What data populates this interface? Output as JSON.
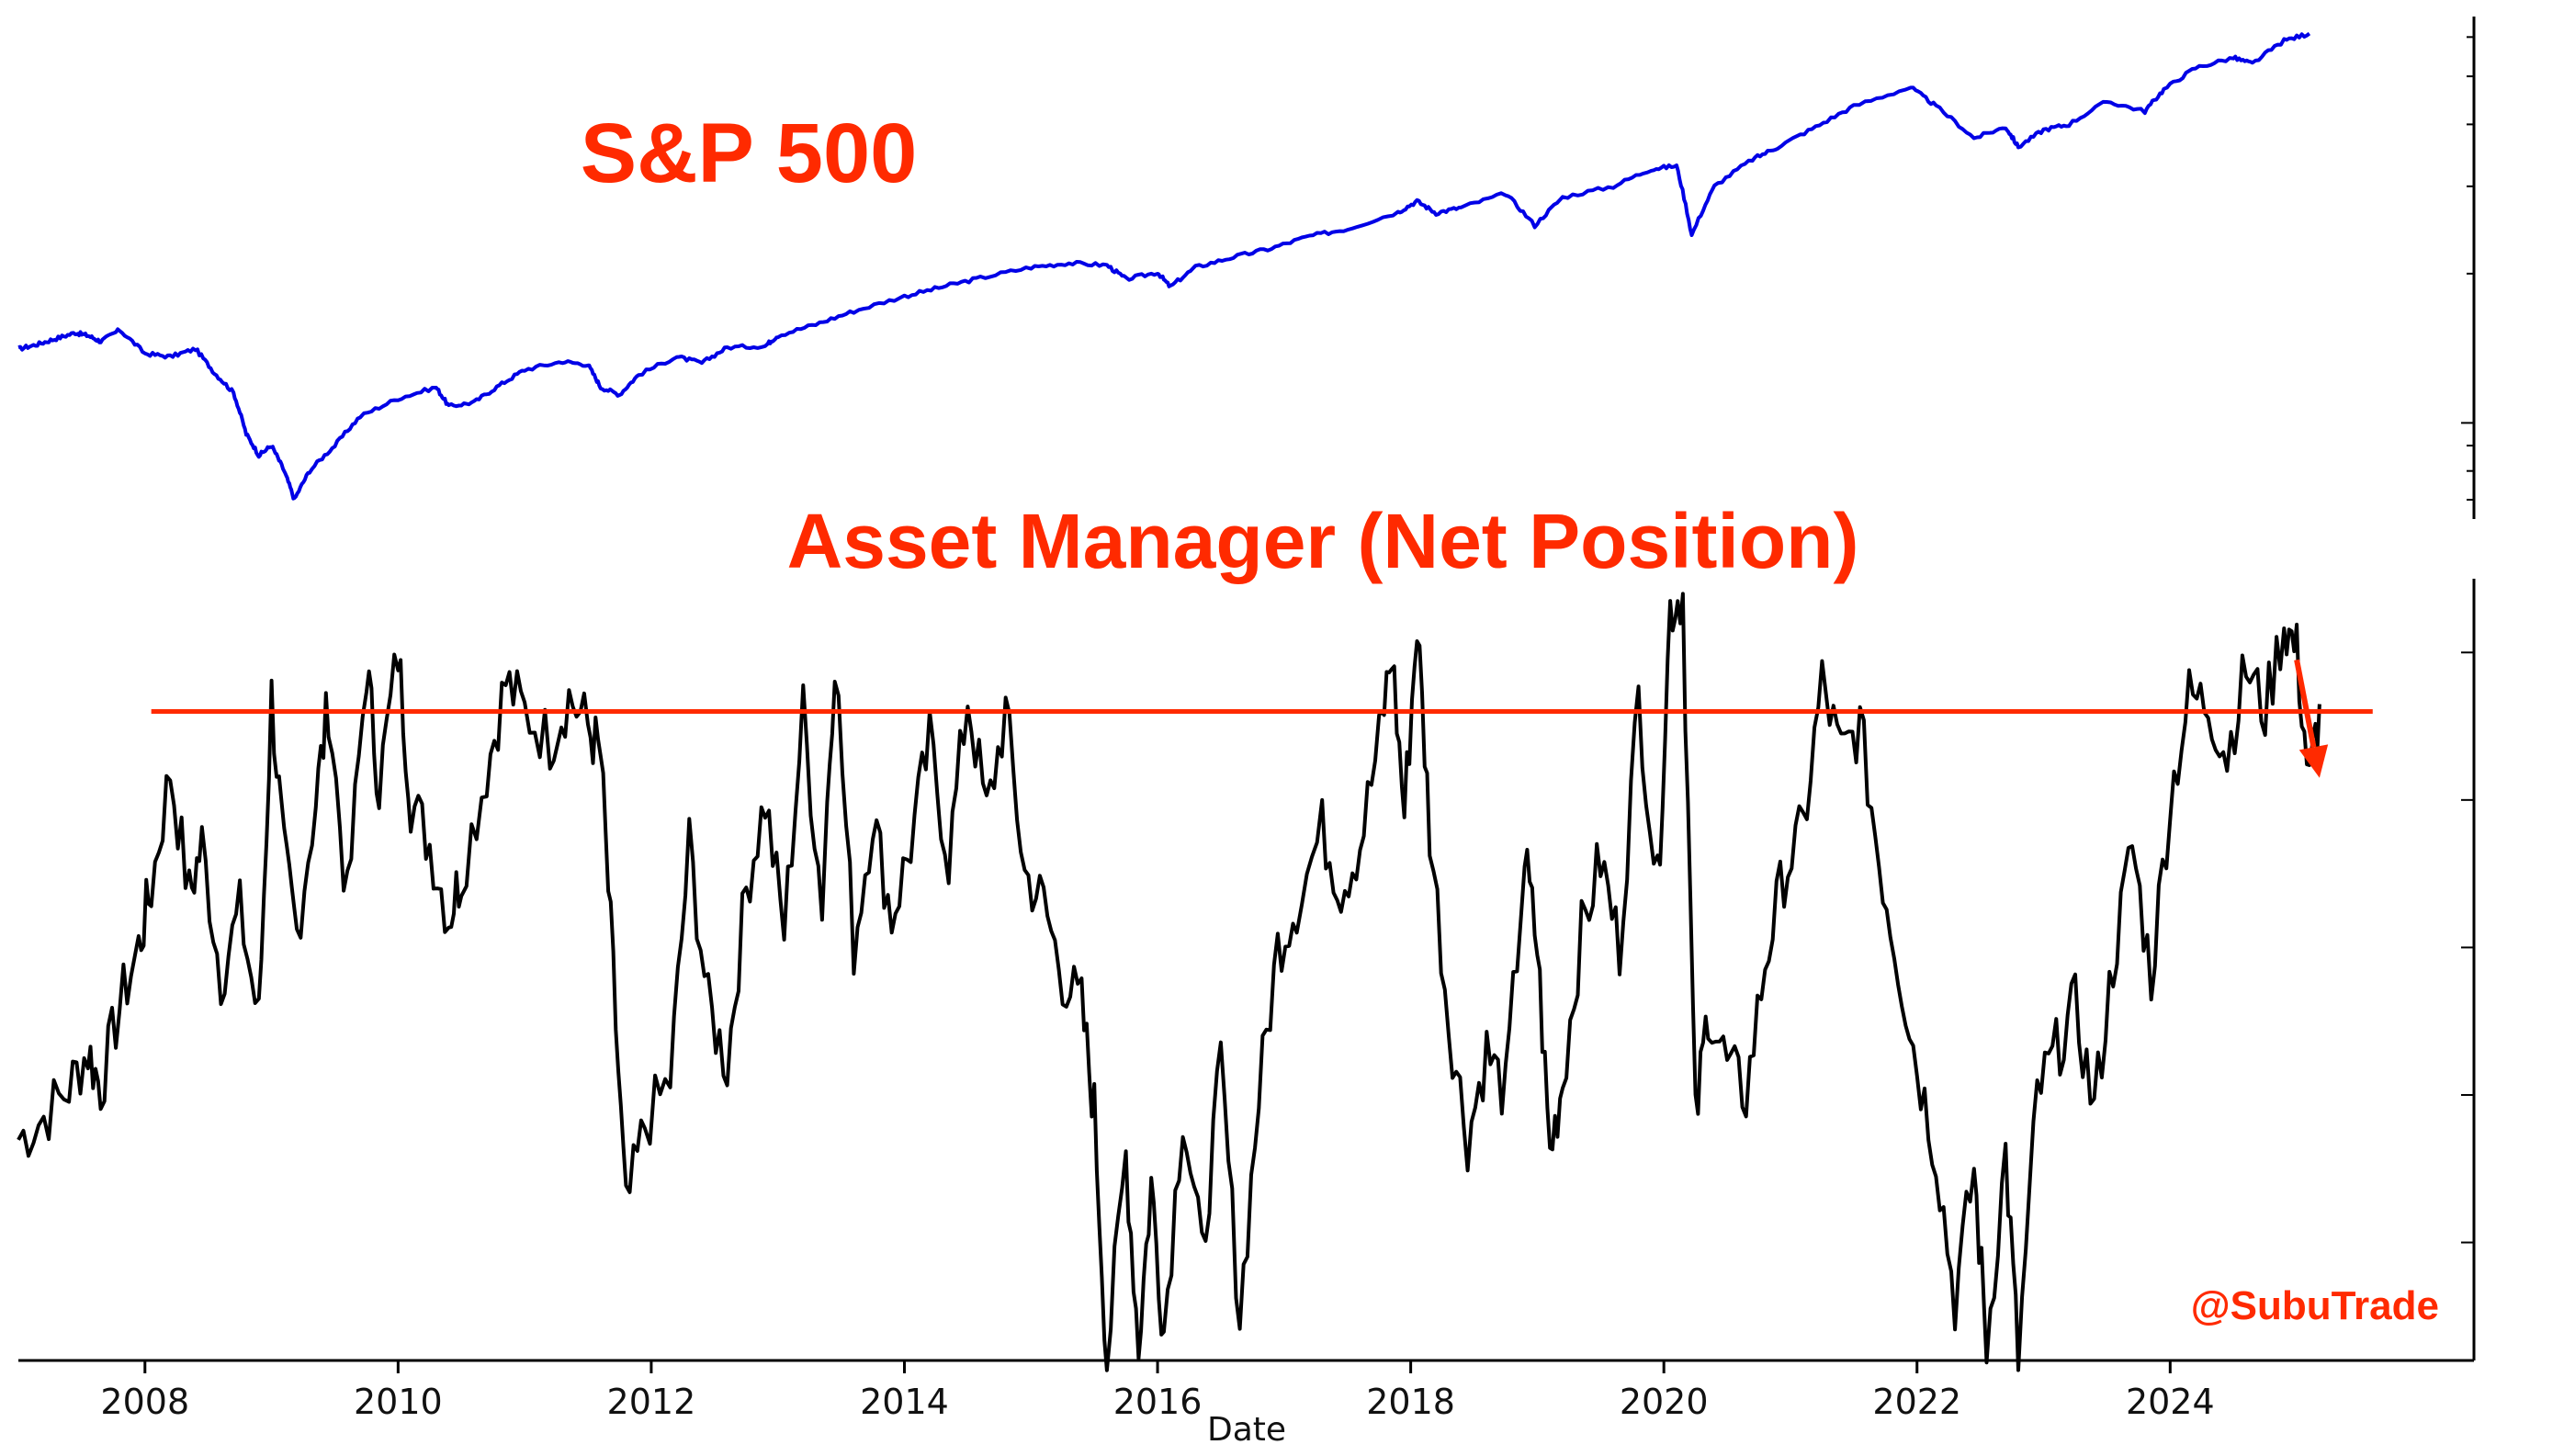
{
  "chart_data": [
    {
      "type": "line",
      "title": "S&P 500",
      "xlabel": "",
      "ylabel": "",
      "xlim": [
        2007.0,
        2026.4
      ],
      "ylim": [
        640,
        6600
      ],
      "log_scale": true,
      "grid": false,
      "y_tick_values": [
        700,
        800,
        900,
        1000,
        2000,
        3000,
        4000,
        5000,
        6000
      ],
      "series": [
        {
          "name": "",
          "color": "#0000e6",
          "x": [
            2007.0,
            2007.15,
            2007.3,
            2007.45,
            2007.55,
            2007.65,
            2007.8,
            2008.0,
            2008.2,
            2008.4,
            2008.55,
            2008.7,
            2008.8,
            2008.9,
            2009.0,
            2009.1,
            2009.18,
            2009.3,
            2009.5,
            2009.7,
            2010.0,
            2010.3,
            2010.4,
            2010.6,
            2010.8,
            2011.0,
            2011.3,
            2011.5,
            2011.6,
            2011.75,
            2011.9,
            2012.2,
            2012.4,
            2012.6,
            2012.9,
            2013.0,
            2013.3,
            2013.6,
            2014.0,
            2014.3,
            2014.6,
            2015.0,
            2015.3,
            2015.6,
            2015.75,
            2016.0,
            2016.1,
            2016.3,
            2016.6,
            2016.9,
            2017.2,
            2017.5,
            2017.9,
            2018.05,
            2018.2,
            2018.4,
            2018.75,
            2018.98,
            2019.2,
            2019.6,
            2019.9,
            2020.1,
            2020.22,
            2020.4,
            2020.7,
            2020.9,
            2021.2,
            2021.5,
            2021.95,
            2022.15,
            2022.45,
            2022.7,
            2022.8,
            2023.0,
            2023.2,
            2023.5,
            2023.8,
            2023.95,
            2024.2,
            2024.5,
            2024.65,
            2024.9,
            2025.1
          ],
          "values": [
            1410,
            1440,
            1480,
            1520,
            1500,
            1460,
            1540,
            1380,
            1360,
            1410,
            1260,
            1150,
            950,
            860,
            900,
            800,
            700,
            800,
            900,
            1030,
            1120,
            1180,
            1080,
            1100,
            1190,
            1280,
            1330,
            1310,
            1180,
            1140,
            1250,
            1360,
            1320,
            1420,
            1430,
            1500,
            1580,
            1680,
            1800,
            1880,
            1960,
            2060,
            2100,
            2080,
            1950,
            2010,
            1880,
            2060,
            2160,
            2250,
            2380,
            2460,
            2660,
            2800,
            2650,
            2720,
            2900,
            2500,
            2850,
            3000,
            3250,
            3300,
            2390,
            3000,
            3400,
            3600,
            3950,
            4350,
            4750,
            4350,
            3750,
            3950,
            3600,
            3900,
            4000,
            4450,
            4250,
            4700,
            5200,
            5450,
            5300,
            5900,
            6100
          ]
        }
      ]
    },
    {
      "type": "line",
      "title": "Asset Manager (Net Position)",
      "xlabel": "Date",
      "ylabel": "",
      "xlim": [
        2007.0,
        2026.4
      ],
      "ylim": [
        -2.2,
        3.1
      ],
      "grid": false,
      "x_tick_labels": [
        "2008",
        "2010",
        "2012",
        "2014",
        "2016",
        "2018",
        "2020",
        "2022",
        "2024"
      ],
      "x_tick_values": [
        2008,
        2010,
        2012,
        2014,
        2016,
        2018,
        2020,
        2022,
        2024
      ],
      "y_tick_values": [
        -1.4,
        -0.4,
        0.6,
        1.6,
        2.6
      ],
      "threshold_line": {
        "value": 2.2,
        "color": "#ff2a00",
        "x_start": 2008.05,
        "x_end": 2025.6
      },
      "arrow": {
        "color": "#ff2a00",
        "from": [
          2025.0,
          2.55
        ],
        "to": [
          2025.18,
          1.75
        ]
      },
      "series": [
        {
          "name": "",
          "color": "#000000",
          "x": [
            2007.0,
            2007.2,
            2007.4,
            2007.55,
            2007.65,
            2007.8,
            2007.95,
            2008.05,
            2008.2,
            2008.35,
            2008.45,
            2008.6,
            2008.75,
            2008.9,
            2009.0,
            2009.1,
            2009.2,
            2009.35,
            2009.45,
            2009.6,
            2009.75,
            2009.85,
            2010.0,
            2010.1,
            2010.25,
            2010.4,
            2010.5,
            2010.7,
            2010.85,
            2011.0,
            2011.2,
            2011.35,
            2011.5,
            2011.6,
            2011.7,
            2011.8,
            2011.95,
            2012.15,
            2012.3,
            2012.45,
            2012.6,
            2012.75,
            2012.9,
            2013.05,
            2013.2,
            2013.35,
            2013.45,
            2013.6,
            2013.75,
            2013.9,
            2014.05,
            2014.2,
            2014.35,
            2014.5,
            2014.65,
            2014.8,
            2014.95,
            2015.1,
            2015.25,
            2015.4,
            2015.5,
            2015.6,
            2015.75,
            2015.85,
            2015.95,
            2016.05,
            2016.2,
            2016.35,
            2016.5,
            2016.65,
            2016.8,
            2016.95,
            2017.1,
            2017.3,
            2017.45,
            2017.6,
            2017.75,
            2017.85,
            2017.95,
            2018.05,
            2018.15,
            2018.3,
            2018.45,
            2018.6,
            2018.75,
            2018.9,
            2019.0,
            2019.1,
            2019.2,
            2019.35,
            2019.5,
            2019.65,
            2019.8,
            2019.95,
            2020.05,
            2020.15,
            2020.25,
            2020.35,
            2020.5,
            2020.65,
            2020.8,
            2020.95,
            2021.1,
            2021.25,
            2021.4,
            2021.55,
            2021.7,
            2021.85,
            2022.0,
            2022.15,
            2022.3,
            2022.45,
            2022.55,
            2022.7,
            2022.8,
            2022.95,
            2023.1,
            2023.25,
            2023.4,
            2023.55,
            2023.7,
            2023.85,
            2024.0,
            2024.15,
            2024.3,
            2024.45,
            2024.6,
            2024.75,
            2024.9,
            2025.0,
            2025.1,
            2025.18
          ],
          "values": [
            -0.7,
            -0.55,
            -0.35,
            -0.1,
            -0.35,
            0.2,
            0.6,
            1.0,
            1.8,
            0.95,
            1.3,
            0.4,
            0.85,
            0.1,
            2.3,
            1.2,
            0.7,
            1.6,
            2.25,
            0.9,
            2.5,
            1.7,
            2.6,
            1.6,
            1.3,
            0.8,
            1.1,
            1.8,
            2.4,
            2.2,
            2.0,
            2.3,
            2.1,
            1.9,
            0.4,
            -1.2,
            -0.6,
            -0.3,
            1.3,
            0.2,
            -0.2,
            1.0,
            1.6,
            0.7,
            2.2,
            0.9,
            2.6,
            0.6,
            1.5,
            0.8,
            1.3,
            2.0,
            1.2,
            2.3,
            1.5,
            2.2,
            1.1,
            0.9,
            0.4,
            0.2,
            -0.5,
            -2.2,
            -0.8,
            -2.1,
            -1.0,
            -2.0,
            -0.5,
            -1.5,
            -0.2,
            -1.9,
            -0.4,
            0.6,
            0.9,
            1.4,
            1.0,
            1.3,
            2.0,
            2.6,
            1.5,
            2.8,
            1.4,
            0.1,
            -0.7,
            -0.1,
            -0.4,
            1.2,
            0.6,
            -0.8,
            -0.3,
            0.7,
            1.2,
            0.6,
            2.3,
            1.0,
            2.9,
            3.0,
            -0.6,
            0.2,
            -0.2,
            -0.4,
            0.5,
            1.1,
            1.4,
            2.4,
            1.9,
            2.1,
            1.2,
            0.5,
            -0.2,
            -0.8,
            -1.8,
            -0.9,
            -2.1,
            -0.8,
            -2.2,
            -0.4,
            -0.1,
            0.2,
            -0.5,
            0.5,
            1.3,
            0.4,
            1.6,
            2.3,
            2.25,
            1.9,
            2.5,
            2.2,
            2.8,
            2.6,
            1.7,
            2.25
          ]
        }
      ]
    }
  ],
  "watermark": "@SubuTrade",
  "colors": {
    "headline": "#ff2a00",
    "sp500_line": "#0000e6",
    "net_position_line": "#000000",
    "threshold": "#ff2a00"
  }
}
